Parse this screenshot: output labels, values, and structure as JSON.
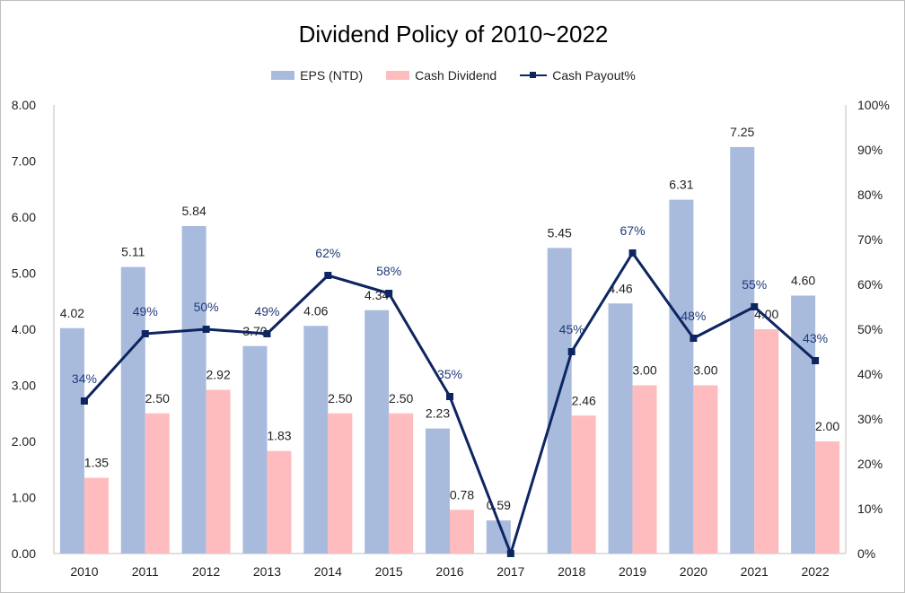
{
  "chart_data": {
    "type": "bar",
    "title": "Dividend Policy of 2010~2022",
    "categories": [
      "2010",
      "2011",
      "2012",
      "2013",
      "2014",
      "2015",
      "2016",
      "2017",
      "2018",
      "2019",
      "2020",
      "2021",
      "2022"
    ],
    "series": [
      {
        "name": "EPS (NTD)",
        "kind": "bar",
        "axis": "left",
        "color": "#a9bbdd",
        "values": [
          4.02,
          5.11,
          5.84,
          3.7,
          4.06,
          4.34,
          2.23,
          0.59,
          5.45,
          4.46,
          6.31,
          7.25,
          4.6
        ],
        "labels": [
          "4.02",
          "5.11",
          "5.84",
          "3.70",
          "4.06",
          "4.34",
          "2.23",
          "0.59",
          "5.45",
          "4.46",
          "6.31",
          "7.25",
          "4.60"
        ]
      },
      {
        "name": "Cash Dividend",
        "kind": "bar",
        "axis": "left",
        "color": "#ffbcbf",
        "values": [
          1.35,
          2.5,
          2.92,
          1.83,
          2.5,
          2.5,
          0.78,
          null,
          2.46,
          3.0,
          3.0,
          4.0,
          2.0
        ],
        "labels": [
          "1.35",
          "2.50",
          "2.92",
          "1.83",
          "2.50",
          "2.50",
          "0.78",
          "",
          "2.46",
          "3.00",
          "3.00",
          "4.00",
          "2.00"
        ]
      },
      {
        "name": "Cash Payout%",
        "kind": "line",
        "axis": "right",
        "color": "#0d2560",
        "values": [
          34,
          49,
          50,
          49,
          62,
          58,
          35,
          0,
          45,
          67,
          48,
          55,
          43
        ],
        "labels": [
          "34%",
          "49%",
          "50%",
          "49%",
          "62%",
          "58%",
          "35%",
          "",
          "45%",
          "67%",
          "48%",
          "55%",
          "43%"
        ]
      }
    ],
    "y_left": {
      "min": 0,
      "max": 8,
      "ticks": [
        "0.00",
        "1.00",
        "2.00",
        "3.00",
        "4.00",
        "5.00",
        "6.00",
        "7.00",
        "8.00"
      ]
    },
    "y_right": {
      "min": 0,
      "max": 100,
      "ticks": [
        "0%",
        "10%",
        "20%",
        "30%",
        "40%",
        "50%",
        "60%",
        "70%",
        "80%",
        "90%",
        "100%"
      ]
    },
    "legend_position": "top",
    "grid": false
  }
}
